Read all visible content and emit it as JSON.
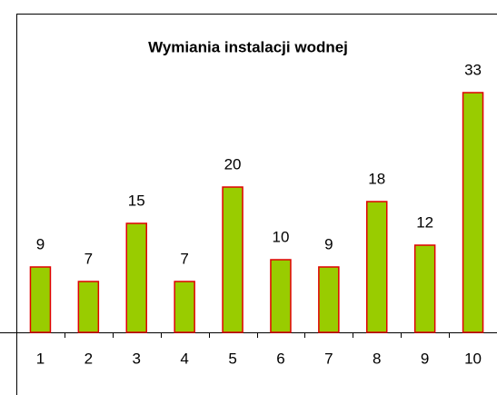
{
  "chart_data": {
    "type": "bar",
    "title": "Wymiania instalacji wodnej",
    "categories": [
      "1",
      "2",
      "3",
      "4",
      "5",
      "6",
      "7",
      "8",
      "9",
      "10"
    ],
    "values": [
      9,
      7,
      15,
      7,
      20,
      10,
      9,
      18,
      12,
      33
    ],
    "color": "#99cc00",
    "edge_color": "#e00000",
    "ylim": [
      0,
      35
    ]
  }
}
